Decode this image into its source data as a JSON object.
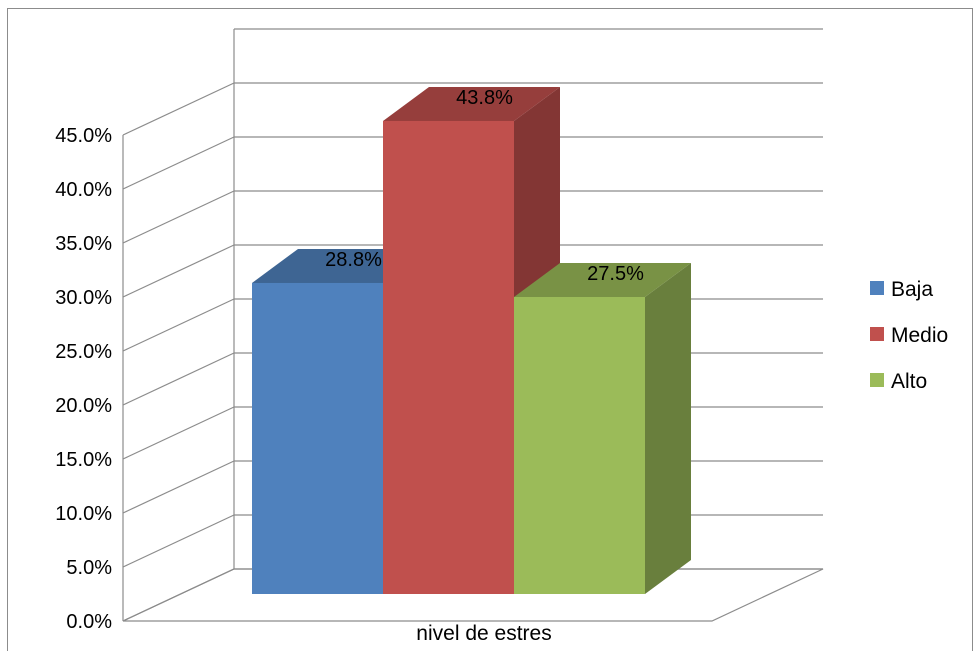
{
  "chart_data": {
    "type": "bar",
    "categories": [
      "nivel de estres"
    ],
    "series": [
      {
        "name": "Baja",
        "values": [
          28.8
        ],
        "label": "28.8%",
        "color": "#4f81bd"
      },
      {
        "name": "Medio",
        "values": [
          43.8
        ],
        "label": "43.8%",
        "color": "#c0504d"
      },
      {
        "name": "Alto",
        "values": [
          27.5
        ],
        "label": "27.5%",
        "color": "#9bbb59"
      }
    ],
    "y_ticks": [
      "0.0%",
      "5.0%",
      "10.0%",
      "15.0%",
      "20.0%",
      "25.0%",
      "30.0%",
      "35.0%",
      "40.0%",
      "45.0%"
    ],
    "ylim": [
      0,
      45
    ],
    "style": "3d-clustered-column",
    "grid": true,
    "legend_position": "right"
  }
}
